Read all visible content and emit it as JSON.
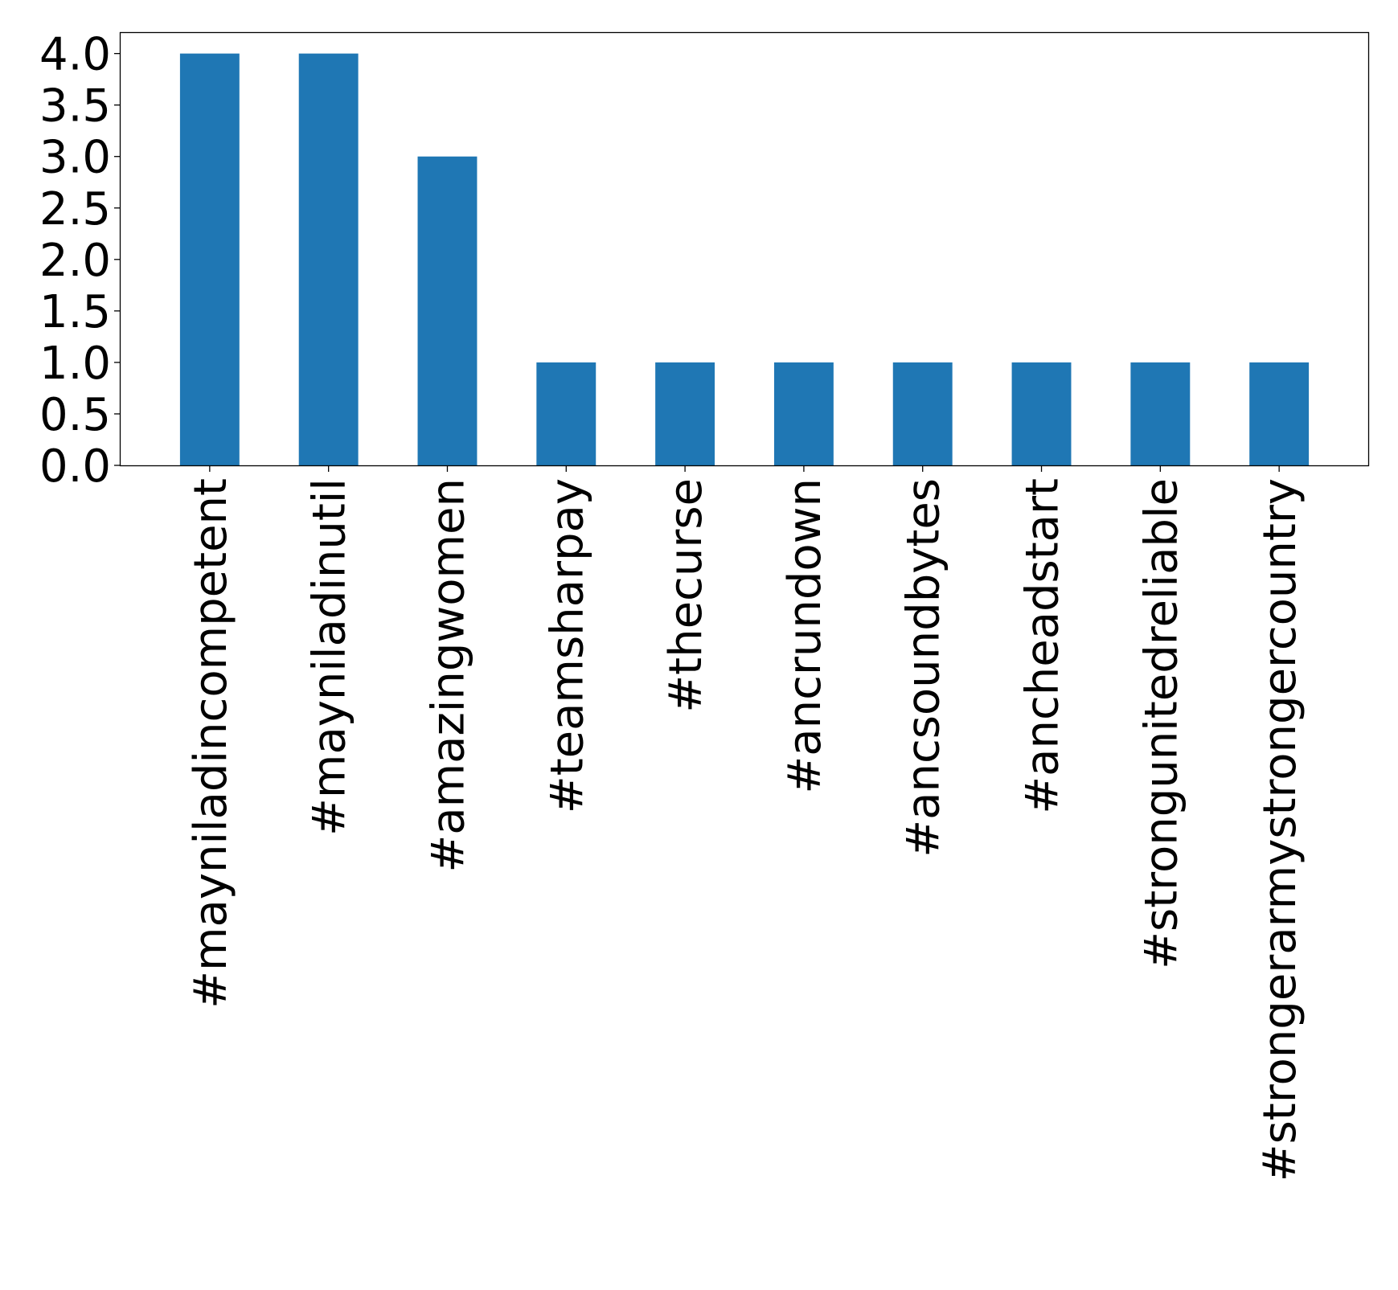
{
  "chart_data": {
    "type": "bar",
    "categories": [
      "#mayniladincompetent",
      "#mayniladinutil",
      "#amazingwomen",
      "#teamsharpay",
      "#thecurse",
      "#ancrundown",
      "#ancsoundbytes",
      "#ancheadstart",
      "#strongunitedreliable",
      "#strongerarmystrongercountry"
    ],
    "values": [
      4,
      4,
      3,
      1,
      1,
      1,
      1,
      1,
      1,
      1
    ],
    "yticks": [
      "0.0",
      "0.5",
      "1.0",
      "1.5",
      "2.0",
      "2.5",
      "3.0",
      "3.5",
      "4.0"
    ],
    "ylim": [
      0,
      4.2
    ],
    "grid": false,
    "title": "",
    "xlabel": "",
    "ylabel": "",
    "bar_color": "#1f77b4"
  }
}
